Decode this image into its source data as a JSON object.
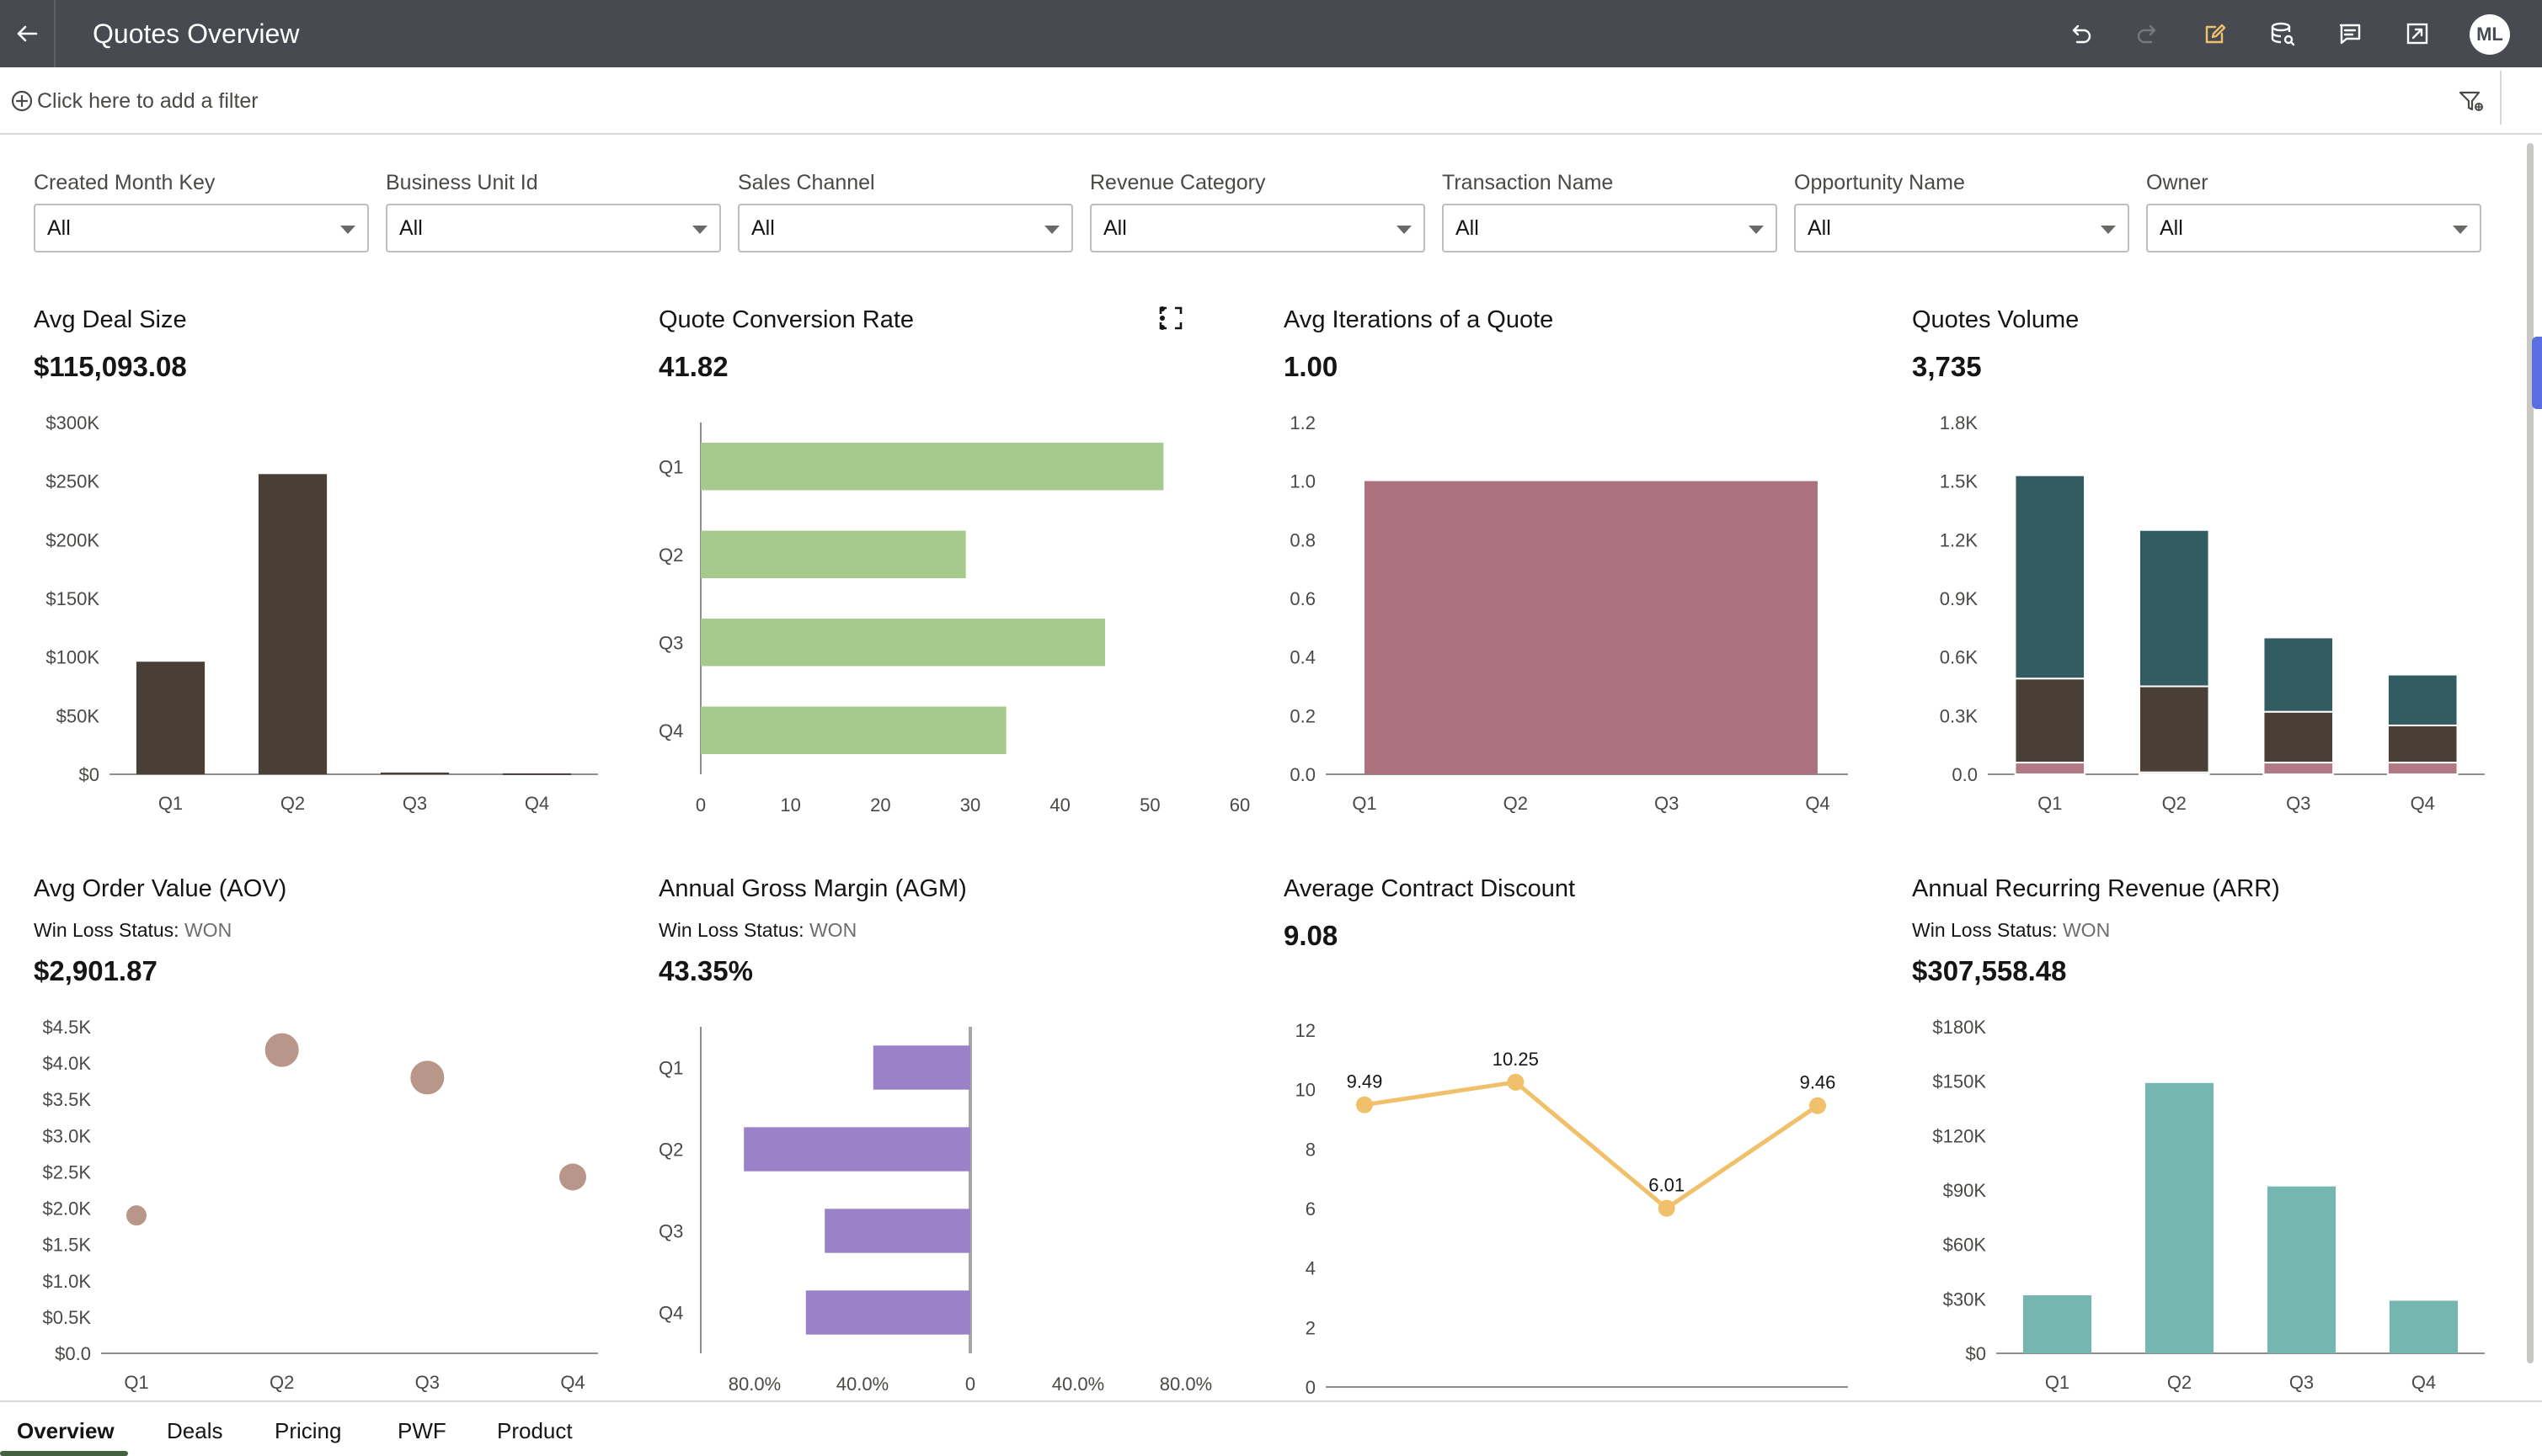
{
  "header": {
    "title": "Quotes Overview",
    "avatar_initials": "ML",
    "icons": [
      "back-arrow-icon",
      "undo-icon",
      "redo-icon",
      "edit-icon",
      "data-icon",
      "comment-icon",
      "export-icon"
    ]
  },
  "filterbar": {
    "placeholder": "Click here to add a filter"
  },
  "selectors": [
    {
      "label": "Created Month Key",
      "value": "All"
    },
    {
      "label": "Business Unit Id",
      "value": "All"
    },
    {
      "label": "Sales Channel",
      "value": "All"
    },
    {
      "label": "Revenue Category",
      "value": "All"
    },
    {
      "label": "Transaction Name",
      "value": "All"
    },
    {
      "label": "Opportunity Name",
      "value": "All"
    },
    {
      "label": "Owner",
      "value": "All"
    }
  ],
  "tiles": {
    "avg_deal_size": {
      "title": "Avg Deal Size",
      "value": "$115,093.08"
    },
    "quote_conversion": {
      "title": "Quote Conversion Rate",
      "value": "41.82"
    },
    "avg_iterations": {
      "title": "Avg Iterations of a Quote",
      "value": "1.00"
    },
    "quotes_volume": {
      "title": "Quotes Volume",
      "value": "3,735"
    },
    "aov": {
      "title": "Avg Order Value (AOV)",
      "filter_label": "Win Loss Status:",
      "filter_value": "WON",
      "value": "$2,901.87"
    },
    "agm": {
      "title": "Annual Gross Margin (AGM)",
      "filter_label": "Win Loss Status:",
      "filter_value": "WON",
      "value": "43.35%"
    },
    "discount": {
      "title": "Average Contract Discount",
      "value": "9.08"
    },
    "arr": {
      "title": "Annual Recurring Revenue (ARR)",
      "filter_label": "Win Loss Status:",
      "filter_value": "WON",
      "value": "$307,558.48"
    }
  },
  "chart_data": [
    {
      "id": "avg_deal_size",
      "type": "bar",
      "categories": [
        "Q1",
        "Q2",
        "Q3",
        "Q4"
      ],
      "values": [
        96000,
        256000,
        1500,
        800
      ],
      "ylim": [
        0,
        300000
      ],
      "yticks": [
        0,
        50000,
        100000,
        150000,
        200000,
        250000,
        300000
      ],
      "ytick_labels": [
        "$0",
        "$50K",
        "$100K",
        "$150K",
        "$200K",
        "$250K",
        "$300K"
      ],
      "color": "#4a3f37"
    },
    {
      "id": "quote_conversion",
      "type": "bar",
      "orientation": "horizontal",
      "categories": [
        "Q1",
        "Q2",
        "Q3",
        "Q4"
      ],
      "values": [
        51.5,
        29.5,
        45,
        34
      ],
      "xlim": [
        0,
        60
      ],
      "xticks": [
        0,
        10,
        20,
        30,
        40,
        50,
        60
      ],
      "xtick_labels": [
        "0",
        "10",
        "20",
        "30",
        "40",
        "50",
        "60"
      ],
      "color": "#a6c98e"
    },
    {
      "id": "avg_iterations",
      "type": "area",
      "categories": [
        "Q1",
        "Q2",
        "Q3",
        "Q4"
      ],
      "values": [
        1.0,
        1.0,
        1.0,
        1.0
      ],
      "ylim": [
        0,
        1.2
      ],
      "yticks": [
        0,
        0.2,
        0.4,
        0.6,
        0.8,
        1.0,
        1.2
      ],
      "ytick_labels": [
        "0.0",
        "0.2",
        "0.4",
        "0.6",
        "0.8",
        "1.0",
        "1.2"
      ],
      "color": "#ac737e"
    },
    {
      "id": "quotes_volume",
      "type": "bar",
      "stacked": true,
      "categories": [
        "Q1",
        "Q2",
        "Q3",
        "Q4"
      ],
      "series": [
        {
          "values": [
            60,
            10,
            60,
            60
          ],
          "color": "#b07983"
        },
        {
          "values": [
            430,
            440,
            260,
            190
          ],
          "color": "#4a3f37"
        },
        {
          "values": [
            1040,
            800,
            380,
            260
          ],
          "color": "#335b62"
        }
      ],
      "ylim": [
        0,
        1800
      ],
      "yticks": [
        0,
        300,
        600,
        900,
        1200,
        1500,
        1800
      ],
      "ytick_labels": [
        "0.0",
        "0.3K",
        "0.6K",
        "0.9K",
        "1.2K",
        "1.5K",
        "1.8K"
      ]
    },
    {
      "id": "aov",
      "type": "scatter",
      "categories": [
        "Q1",
        "Q2",
        "Q3",
        "Q4"
      ],
      "values": [
        1900,
        4180,
        3800,
        2430
      ],
      "sizes": [
        1,
        2,
        2,
        1.5
      ],
      "ylim": [
        0,
        4500
      ],
      "yticks": [
        0,
        500,
        1000,
        1500,
        2000,
        2500,
        3000,
        3500,
        4000,
        4500
      ],
      "ytick_labels": [
        "$0.0",
        "$0.5K",
        "$1.0K",
        "$1.5K",
        "$2.0K",
        "$2.5K",
        "$3.0K",
        "$3.5K",
        "$4.0K",
        "$4.5K"
      ],
      "color": "#b8968a"
    },
    {
      "id": "agm",
      "type": "bar",
      "orientation": "horizontal",
      "categories": [
        "Q1",
        "Q2",
        "Q3",
        "Q4"
      ],
      "values": [
        -0.36,
        -0.84,
        -0.54,
        -0.61
      ],
      "xlim": [
        -1,
        1
      ],
      "xticks": [
        -0.8,
        -0.4,
        0,
        0.4,
        0.8
      ],
      "xtick_labels": [
        "80.0%",
        "40.0%",
        "0",
        "40.0%",
        "80.0%"
      ],
      "color": "#9a82c9"
    },
    {
      "id": "discount",
      "type": "line",
      "categories": [
        "Q1",
        "Q2",
        "Q3",
        "Q4"
      ],
      "values": [
        9.49,
        10.25,
        6.01,
        9.46
      ],
      "data_labels": [
        "9.49",
        "10.25",
        "6.01",
        "9.46"
      ],
      "ylim": [
        0,
        12
      ],
      "yticks": [
        0,
        2,
        4,
        6,
        8,
        10,
        12
      ],
      "ytick_labels": [
        "0",
        "2",
        "4",
        "6",
        "8",
        "10",
        "12"
      ],
      "color": "#f0c06a"
    },
    {
      "id": "arr",
      "type": "bar",
      "categories": [
        "Q1",
        "Q2",
        "Q3",
        "Q4"
      ],
      "values": [
        32000,
        149000,
        92000,
        29000
      ],
      "ylim": [
        0,
        180000
      ],
      "yticks": [
        0,
        30000,
        60000,
        90000,
        120000,
        150000,
        180000
      ],
      "ytick_labels": [
        "$0",
        "$30K",
        "$60K",
        "$90K",
        "$120K",
        "$150K",
        "$180K"
      ],
      "color": "#76b6b1"
    }
  ],
  "tabs": [
    {
      "label": "Overview",
      "active": true
    },
    {
      "label": "Deals"
    },
    {
      "label": "Pricing"
    },
    {
      "label": "PWF"
    },
    {
      "label": "Product"
    }
  ]
}
